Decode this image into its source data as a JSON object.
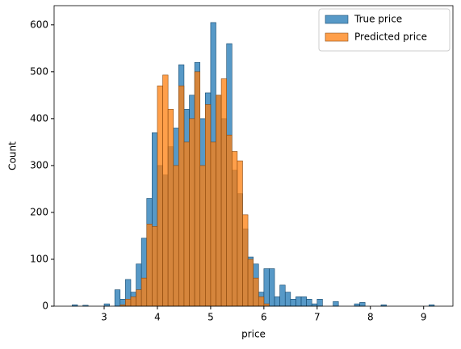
{
  "chart_data": {
    "type": "histogram",
    "xlabel": "price",
    "ylabel": "Count",
    "bins": [
      2.4,
      2.5,
      2.6,
      2.7,
      2.8,
      2.9,
      3.0,
      3.1,
      3.2,
      3.3,
      3.4,
      3.5,
      3.6,
      3.7,
      3.8,
      3.9,
      4.0,
      4.1,
      4.2,
      4.3,
      4.4,
      4.5,
      4.6,
      4.7,
      4.8,
      4.9,
      5.0,
      5.1,
      5.2,
      5.3,
      5.4,
      5.5,
      5.6,
      5.7,
      5.8,
      5.9,
      6.0,
      6.1,
      6.2,
      6.3,
      6.4,
      6.5,
      6.6,
      6.7,
      6.8,
      6.9,
      7.0,
      7.1,
      7.2,
      7.3,
      7.4,
      7.5,
      7.6,
      7.7,
      7.8,
      7.9,
      8.0,
      8.1,
      8.2,
      8.3,
      8.4,
      8.5,
      8.6,
      8.7,
      8.8,
      8.9,
      9.0,
      9.1,
      9.2
    ],
    "series": [
      {
        "name": "True price",
        "color": "#1f77b4",
        "values": [
          3,
          0,
          2,
          0,
          0,
          0,
          5,
          0,
          35,
          15,
          57,
          30,
          90,
          145,
          230,
          370,
          300,
          280,
          340,
          380,
          515,
          420,
          450,
          520,
          400,
          455,
          605,
          450,
          400,
          560,
          290,
          240,
          165,
          105,
          90,
          30,
          80,
          80,
          20,
          45,
          30,
          15,
          20,
          20,
          15,
          5,
          15,
          0,
          0,
          10,
          0,
          0,
          0,
          5,
          8,
          0,
          0,
          0,
          3,
          0,
          0,
          0,
          0,
          0,
          0,
          0,
          0,
          3
        ]
      },
      {
        "name": "Predicted price",
        "color": "#ff7f0e",
        "values": [
          0,
          0,
          0,
          0,
          0,
          0,
          0,
          0,
          0,
          3,
          15,
          20,
          35,
          60,
          175,
          170,
          470,
          493,
          420,
          300,
          470,
          350,
          400,
          500,
          300,
          430,
          350,
          450,
          485,
          365,
          330,
          310,
          195,
          100,
          60,
          20,
          5,
          0,
          0,
          0,
          0,
          0,
          0,
          0,
          0,
          0,
          0,
          0,
          0,
          0,
          0,
          0,
          0,
          0,
          0,
          0,
          0,
          0,
          0,
          0,
          0,
          0,
          0,
          0,
          0,
          0,
          0,
          0
        ]
      }
    ],
    "xlim": [
      2.06,
      9.55
    ],
    "xticks": [
      3,
      4,
      5,
      6,
      7,
      8,
      9
    ],
    "ylim": [
      0,
      641
    ],
    "yticks": [
      0,
      100,
      200,
      300,
      400,
      500,
      600
    ],
    "legend": "upper-right"
  }
}
